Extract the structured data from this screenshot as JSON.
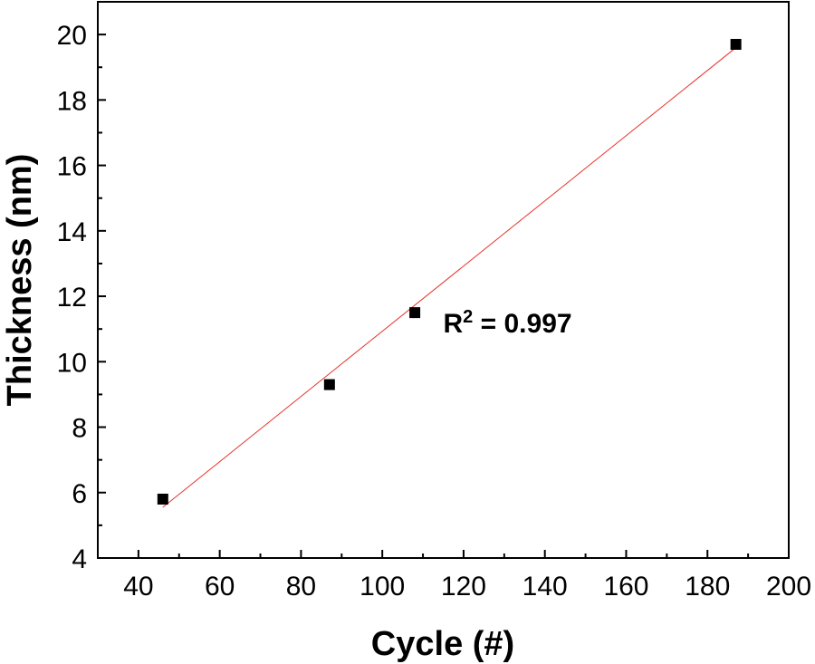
{
  "chart_data": {
    "type": "scatter",
    "xlabel": "Cycle (#)",
    "ylabel": "Thickness (nm)",
    "xlim": [
      30,
      200
    ],
    "ylim": [
      4,
      21
    ],
    "xticks": [
      40,
      60,
      80,
      100,
      120,
      140,
      160,
      180,
      200
    ],
    "yticks": [
      4,
      6,
      8,
      10,
      12,
      14,
      16,
      18,
      20
    ],
    "grid": false,
    "series": [
      {
        "marker": "square",
        "color": "#000000",
        "x": [
          46,
          87,
          108,
          187
        ],
        "y": [
          5.8,
          9.3,
          11.5,
          19.7
        ]
      }
    ],
    "fit_line": {
      "color": "#e8322d",
      "x": [
        46,
        187
      ],
      "y": [
        5.55,
        19.6
      ]
    },
    "annotations": [
      {
        "base": "R",
        "sup": "2",
        "rest": " = 0.997",
        "x": 115,
        "y": 10.9
      }
    ]
  }
}
